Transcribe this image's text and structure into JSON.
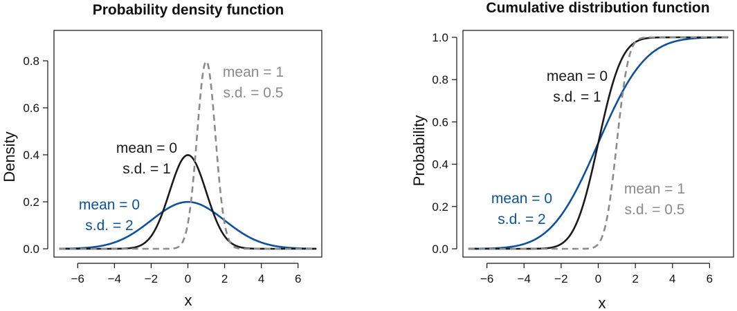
{
  "colors": {
    "black": "#1a1a1a",
    "blue": "#0b519e",
    "gray": "#8a8a8a"
  },
  "chart_data": [
    {
      "type": "line",
      "title": "Probability density function",
      "xlabel": "x",
      "ylabel": "Density",
      "xlim": [
        -7,
        7
      ],
      "ylim": [
        0,
        0.9
      ],
      "xticks": [
        -6,
        -4,
        -2,
        0,
        2,
        4,
        6
      ],
      "yticks": [
        0.0,
        0.2,
        0.4,
        0.6,
        0.8
      ],
      "xtick_labels": [
        "−6",
        "−4",
        "−2",
        "0",
        "2",
        "4",
        "6"
      ],
      "ytick_labels": [
        "0.0",
        "0.2",
        "0.4",
        "0.6",
        "0.8"
      ],
      "function": "normal_pdf",
      "series": [
        {
          "mean": 0,
          "sd": 1,
          "color": "black",
          "dash": false
        },
        {
          "mean": 0,
          "sd": 2,
          "color": "blue",
          "dash": false
        },
        {
          "mean": 1,
          "sd": 0.5,
          "color": "gray",
          "dash": true
        }
      ],
      "annotations": [
        {
          "lines": [
            "mean = 0",
            "s.d. = 1"
          ],
          "color": "black"
        },
        {
          "lines": [
            "mean = 0",
            "s.d. = 2"
          ],
          "color": "blue"
        },
        {
          "lines": [
            "mean = 1",
            "s.d. = 0.5"
          ],
          "color": "gray"
        }
      ],
      "grid": false,
      "legend": "none"
    },
    {
      "type": "line",
      "title": "Cumulative distribution function",
      "xlabel": "x",
      "ylabel": "Probability",
      "xlim": [
        -7,
        7
      ],
      "ylim": [
        0,
        1.0
      ],
      "xticks": [
        -6,
        -4,
        -2,
        0,
        2,
        4,
        6
      ],
      "yticks": [
        0.0,
        0.2,
        0.4,
        0.6,
        0.8,
        1.0
      ],
      "xtick_labels": [
        "−6",
        "−4",
        "−2",
        "0",
        "2",
        "4",
        "6"
      ],
      "ytick_labels": [
        "0.0",
        "0.2",
        "0.4",
        "0.6",
        "0.8",
        "1.0"
      ],
      "function": "normal_cdf",
      "series": [
        {
          "mean": 0,
          "sd": 1,
          "color": "black",
          "dash": false
        },
        {
          "mean": 0,
          "sd": 2,
          "color": "blue",
          "dash": false
        },
        {
          "mean": 1,
          "sd": 0.5,
          "color": "gray",
          "dash": true
        }
      ],
      "annotations": [
        {
          "lines": [
            "mean = 0",
            "s.d. = 1"
          ],
          "color": "black"
        },
        {
          "lines": [
            "mean = 0",
            "s.d. = 2"
          ],
          "color": "blue"
        },
        {
          "lines": [
            "mean = 1",
            "s.d. = 0.5"
          ],
          "color": "gray"
        }
      ],
      "grid": false,
      "legend": "none"
    }
  ]
}
